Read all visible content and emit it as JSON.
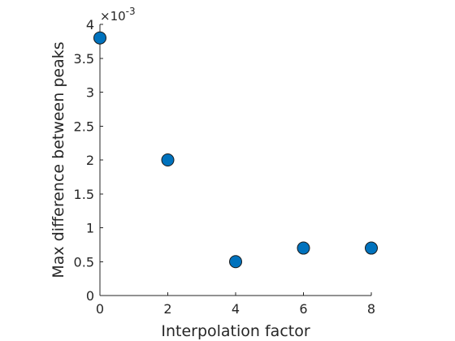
{
  "chart_data": {
    "type": "scatter",
    "xlabel": "Interpolation factor",
    "ylabel": "Max difference between peaks",
    "y_exponent": {
      "base": "×10",
      "power": "-3"
    },
    "xlim": [
      0,
      8
    ],
    "ylim": [
      0,
      4
    ],
    "x_ticks": [
      0,
      2,
      4,
      6,
      8
    ],
    "x_tick_labels": [
      "0",
      "2",
      "4",
      "6",
      "8"
    ],
    "y_ticks": [
      0,
      0.5,
      1,
      1.5,
      2,
      2.5,
      3,
      3.5,
      4
    ],
    "y_tick_labels": [
      "0",
      "0.5",
      "1",
      "1.5",
      "2",
      "2.5",
      "3",
      "3.5",
      "4"
    ],
    "grid": false,
    "marker_color": "#0072BD",
    "marker_edge_color": "#1a1a1a",
    "points": [
      {
        "x": 0,
        "y": 3.8
      },
      {
        "x": 2,
        "y": 2.0
      },
      {
        "x": 4,
        "y": 0.5
      },
      {
        "x": 6,
        "y": 0.7
      },
      {
        "x": 8,
        "y": 0.7
      }
    ]
  }
}
